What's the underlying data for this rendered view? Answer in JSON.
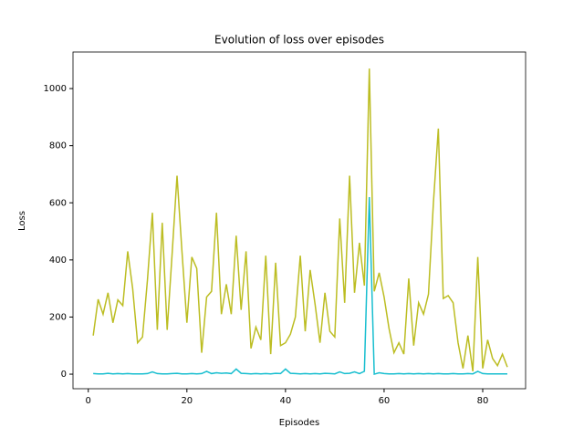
{
  "chart_data": {
    "type": "line",
    "title": "Evolution of loss over episodes",
    "xlabel": "Episodes",
    "ylabel": "Loss",
    "x": [
      1,
      2,
      3,
      4,
      5,
      6,
      7,
      8,
      9,
      10,
      11,
      12,
      13,
      14,
      15,
      16,
      17,
      18,
      19,
      20,
      21,
      22,
      23,
      24,
      25,
      26,
      27,
      28,
      29,
      30,
      31,
      32,
      33,
      34,
      35,
      36,
      37,
      38,
      39,
      40,
      41,
      42,
      43,
      44,
      45,
      46,
      47,
      48,
      49,
      50,
      51,
      52,
      53,
      54,
      55,
      56,
      57,
      58,
      59,
      60,
      61,
      62,
      63,
      64,
      65,
      66,
      67,
      68,
      69,
      70,
      71,
      72,
      73,
      74,
      75,
      76,
      77,
      78,
      79,
      80,
      81,
      82,
      83,
      84,
      85
    ],
    "series": [
      {
        "color": "#bcbd22",
        "values": [
          135,
          262,
          210,
          285,
          180,
          260,
          240,
          430,
          300,
          110,
          130,
          330,
          565,
          155,
          530,
          155,
          420,
          695,
          430,
          180,
          410,
          370,
          75,
          270,
          290,
          565,
          210,
          315,
          210,
          485,
          225,
          430,
          90,
          165,
          120,
          415,
          70,
          390,
          100,
          110,
          140,
          200,
          415,
          150,
          365,
          245,
          110,
          285,
          150,
          130,
          545,
          250,
          695,
          285,
          460,
          310,
          1070,
          290,
          355,
          270,
          160,
          75,
          110,
          70,
          335,
          100,
          250,
          210,
          280,
          600,
          860,
          265,
          275,
          250,
          110,
          20,
          135,
          10,
          410,
          20,
          120,
          55,
          30,
          70,
          25
        ]
      },
      {
        "color": "#17becf",
        "values": [
          2,
          1,
          1,
          3,
          1,
          2,
          1,
          2,
          1,
          1,
          1,
          2,
          8,
          2,
          1,
          1,
          2,
          3,
          1,
          1,
          2,
          1,
          2,
          10,
          2,
          5,
          3,
          4,
          2,
          18,
          3,
          2,
          1,
          2,
          1,
          2,
          1,
          3,
          2,
          18,
          3,
          2,
          1,
          2,
          1,
          2,
          1,
          3,
          2,
          1,
          8,
          2,
          3,
          8,
          2,
          10,
          620,
          0,
          5,
          2,
          1,
          1,
          2,
          1,
          2,
          1,
          2,
          1,
          2,
          1,
          2,
          1,
          1,
          2,
          1,
          1,
          2,
          1,
          10,
          2,
          1,
          1,
          1,
          1,
          1
        ]
      }
    ],
    "xlim": [
      -3.1,
      88.7
    ],
    "ylim": [
      -51,
      1128
    ],
    "xticks": [
      0,
      20,
      40,
      60,
      80
    ],
    "yticks": [
      0,
      200,
      400,
      600,
      800,
      1000
    ]
  }
}
